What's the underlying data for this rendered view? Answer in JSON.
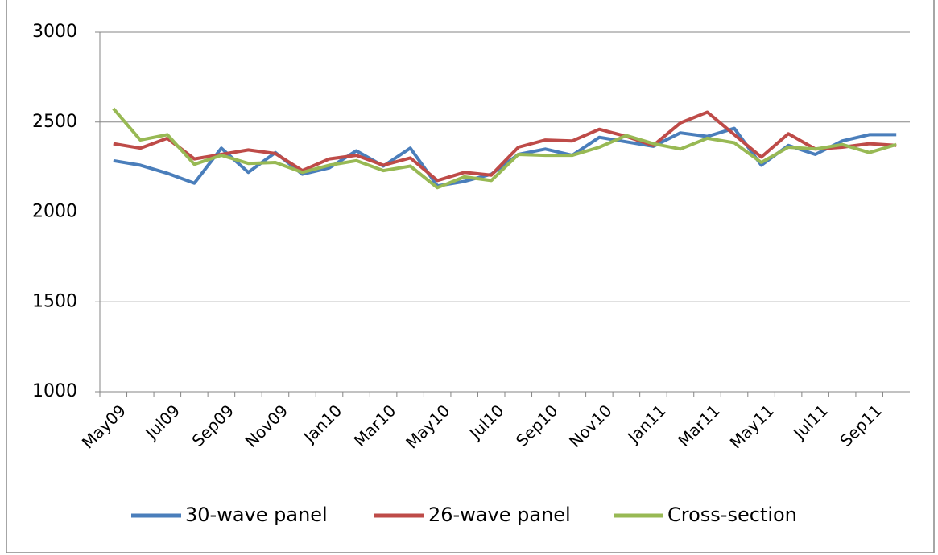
{
  "chart_data": {
    "type": "line",
    "categories": [
      "May09",
      null,
      "Jul09",
      null,
      "Sep09",
      null,
      "Nov09",
      null,
      "Jan10",
      null,
      "Mar10",
      null,
      "May10",
      null,
      "Jul10",
      null,
      "Sep10",
      null,
      "Nov10",
      null,
      "Jan11",
      null,
      "Mar11",
      null,
      "May11",
      null,
      "Jul11",
      null,
      "Sep11",
      null
    ],
    "series": [
      {
        "name": "30-wave panel",
        "color": "#4a7ebb",
        "values": [
          2285,
          2260,
          2215,
          2160,
          2355,
          2220,
          2330,
          2210,
          2245,
          2340,
          2255,
          2355,
          2145,
          2170,
          2210,
          2320,
          2350,
          2315,
          2415,
          2390,
          2365,
          2440,
          2420,
          2465,
          2260,
          2370,
          2320,
          2395,
          2430,
          2430
        ]
      },
      {
        "name": "26-wave panel",
        "color": "#be4b48",
        "values": [
          2380,
          2355,
          2410,
          2295,
          2320,
          2345,
          2325,
          2230,
          2295,
          2315,
          2260,
          2300,
          2175,
          2220,
          2205,
          2360,
          2400,
          2395,
          2460,
          2420,
          2370,
          2495,
          2555,
          2430,
          2305,
          2435,
          2350,
          2360,
          2380,
          2370
        ]
      },
      {
        "name": "Cross-section",
        "color": "#98b954",
        "values": [
          2575,
          2400,
          2430,
          2265,
          2315,
          2270,
          2275,
          2220,
          2260,
          2285,
          2230,
          2255,
          2135,
          2195,
          2175,
          2320,
          2315,
          2315,
          2360,
          2425,
          2380,
          2350,
          2410,
          2385,
          2275,
          2360,
          2350,
          2375,
          2330,
          2375
        ]
      }
    ],
    "ylim": [
      1000,
      3000
    ],
    "yticks": [
      1000,
      1500,
      2000,
      2500,
      3000
    ],
    "grid": true,
    "legend": "bottom"
  }
}
